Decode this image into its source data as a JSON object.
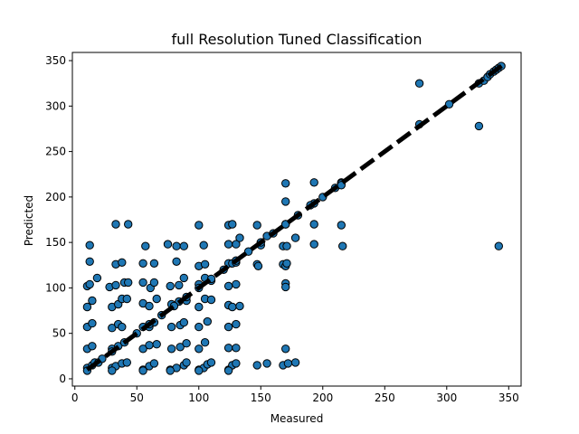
{
  "chart_data": {
    "type": "scatter",
    "title": "full Resolution Tuned Classification",
    "xlabel": "Measured",
    "ylabel": "Predicted",
    "xlim": [
      -2,
      360
    ],
    "ylim": [
      -8,
      359
    ],
    "xticks": [
      0,
      50,
      100,
      150,
      200,
      250,
      300,
      350
    ],
    "yticks": [
      0,
      50,
      100,
      150,
      200,
      250,
      300,
      350
    ],
    "grid": false,
    "marker_color": "#1f77b4",
    "marker_edge_color": "#000000",
    "fit_line": {
      "style": "dashed",
      "color": "#000000",
      "x": [
        10,
        345
      ],
      "y": [
        10,
        345
      ]
    },
    "points": [
      [
        278,
        325
      ],
      [
        302,
        302
      ],
      [
        278,
        280
      ],
      [
        326,
        278
      ],
      [
        342,
        146
      ],
      [
        326,
        325
      ],
      [
        330,
        328
      ],
      [
        333,
        332
      ],
      [
        335,
        335
      ],
      [
        338,
        338
      ],
      [
        340,
        340
      ],
      [
        342,
        342
      ],
      [
        344,
        344
      ],
      [
        170,
        215
      ],
      [
        193,
        216
      ],
      [
        215,
        216
      ],
      [
        215,
        215
      ],
      [
        170,
        195
      ],
      [
        193,
        193
      ],
      [
        33,
        170
      ],
      [
        43,
        170
      ],
      [
        100,
        169
      ],
      [
        124,
        169
      ],
      [
        127,
        170
      ],
      [
        147,
        169
      ],
      [
        170,
        170
      ],
      [
        193,
        170
      ],
      [
        215,
        169
      ],
      [
        12,
        129
      ],
      [
        33,
        126
      ],
      [
        38,
        128
      ],
      [
        55,
        127
      ],
      [
        64,
        127
      ],
      [
        82,
        129
      ],
      [
        100,
        124
      ],
      [
        105,
        126
      ],
      [
        124,
        127
      ],
      [
        127,
        127
      ],
      [
        130,
        128
      ],
      [
        147,
        126
      ],
      [
        148,
        124
      ],
      [
        168,
        126
      ],
      [
        170,
        124
      ],
      [
        171,
        127
      ],
      [
        12,
        147
      ],
      [
        57,
        146
      ],
      [
        75,
        148
      ],
      [
        82,
        146
      ],
      [
        88,
        146
      ],
      [
        104,
        147
      ],
      [
        124,
        148
      ],
      [
        130,
        148
      ],
      [
        150,
        147
      ],
      [
        168,
        146
      ],
      [
        171,
        146
      ],
      [
        193,
        148
      ],
      [
        216,
        146
      ],
      [
        133,
        155
      ],
      [
        155,
        157
      ],
      [
        178,
        155
      ],
      [
        170,
        105
      ],
      [
        170,
        101
      ],
      [
        10,
        102
      ],
      [
        12,
        104
      ],
      [
        18,
        111
      ],
      [
        28,
        101
      ],
      [
        33,
        103
      ],
      [
        40,
        106
      ],
      [
        43,
        106
      ],
      [
        55,
        106
      ],
      [
        61,
        100
      ],
      [
        64,
        106
      ],
      [
        77,
        102
      ],
      [
        84,
        103
      ],
      [
        88,
        111
      ],
      [
        100,
        104
      ],
      [
        105,
        111
      ],
      [
        110,
        108
      ],
      [
        124,
        102
      ],
      [
        130,
        104
      ],
      [
        10,
        79
      ],
      [
        14,
        86
      ],
      [
        30,
        79
      ],
      [
        35,
        82
      ],
      [
        38,
        88
      ],
      [
        42,
        88
      ],
      [
        55,
        83
      ],
      [
        60,
        80
      ],
      [
        66,
        88
      ],
      [
        78,
        82
      ],
      [
        84,
        85
      ],
      [
        90,
        86
      ],
      [
        100,
        79
      ],
      [
        105,
        88
      ],
      [
        110,
        87
      ],
      [
        124,
        81
      ],
      [
        127,
        79
      ],
      [
        133,
        80
      ],
      [
        10,
        57
      ],
      [
        14,
        61
      ],
      [
        30,
        56
      ],
      [
        35,
        60
      ],
      [
        38,
        57
      ],
      [
        55,
        57
      ],
      [
        60,
        57
      ],
      [
        64,
        62
      ],
      [
        78,
        57
      ],
      [
        85,
        59
      ],
      [
        88,
        62
      ],
      [
        100,
        57
      ],
      [
        107,
        63
      ],
      [
        124,
        57
      ],
      [
        130,
        60
      ],
      [
        10,
        33
      ],
      [
        14,
        36
      ],
      [
        30,
        33
      ],
      [
        35,
        36
      ],
      [
        55,
        33
      ],
      [
        60,
        37
      ],
      [
        66,
        38
      ],
      [
        78,
        33
      ],
      [
        85,
        35
      ],
      [
        90,
        39
      ],
      [
        100,
        33
      ],
      [
        105,
        40
      ],
      [
        124,
        34
      ],
      [
        130,
        34
      ],
      [
        170,
        33
      ],
      [
        10,
        12
      ],
      [
        14,
        15
      ],
      [
        16,
        18
      ],
      [
        19,
        18
      ],
      [
        30,
        12
      ],
      [
        33,
        14
      ],
      [
        38,
        17
      ],
      [
        42,
        18
      ],
      [
        55,
        10
      ],
      [
        60,
        14
      ],
      [
        64,
        17
      ],
      [
        77,
        10
      ],
      [
        82,
        12
      ],
      [
        88,
        15
      ],
      [
        90,
        18
      ],
      [
        100,
        10
      ],
      [
        104,
        12
      ],
      [
        107,
        16
      ],
      [
        110,
        18
      ],
      [
        124,
        10
      ],
      [
        127,
        15
      ],
      [
        130,
        17
      ],
      [
        147,
        15
      ],
      [
        155,
        17
      ],
      [
        168,
        15
      ],
      [
        172,
        17
      ],
      [
        178,
        18
      ],
      [
        10,
        9
      ],
      [
        30,
        9
      ],
      [
        55,
        9
      ],
      [
        77,
        9
      ],
      [
        100,
        9
      ],
      [
        124,
        9
      ],
      [
        22,
        22
      ],
      [
        30,
        30
      ],
      [
        40,
        40
      ],
      [
        50,
        50
      ],
      [
        60,
        60
      ],
      [
        70,
        70
      ],
      [
        80,
        80
      ],
      [
        90,
        90
      ],
      [
        100,
        100
      ],
      [
        110,
        110
      ],
      [
        120,
        120
      ],
      [
        130,
        130
      ],
      [
        140,
        140
      ],
      [
        150,
        150
      ],
      [
        160,
        160
      ],
      [
        170,
        170
      ],
      [
        180,
        180
      ],
      [
        190,
        191
      ],
      [
        200,
        200
      ],
      [
        210,
        210
      ],
      [
        215,
        213
      ]
    ]
  }
}
